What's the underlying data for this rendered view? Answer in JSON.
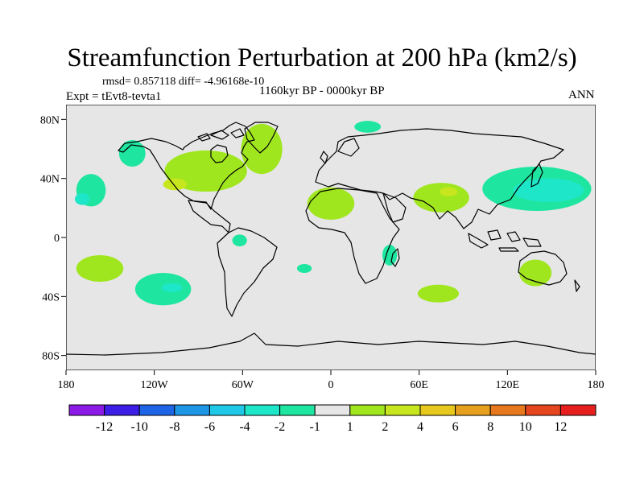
{
  "title": "Streamfunction Perturbation at 200 hPa (km2/s)",
  "stats_line": "rmsd= 0.857118 diff= -4.96168e-10",
  "experiment": "Expt = tEvt8-tevta1",
  "period": "1160kyr BP - 0000kyr BP",
  "season": "ANN",
  "map": {
    "projection": "cylindrical-equidistant",
    "lon_range": [
      -180,
      180
    ],
    "lat_range": [
      -90,
      90
    ],
    "background_color": "#e6e6e6",
    "coastline_color": "#000000",
    "y_ticks": [
      {
        "lat": 80,
        "label": "80N"
      },
      {
        "lat": 40,
        "label": "40N"
      },
      {
        "lat": 0,
        "label": "0"
      },
      {
        "lat": -40,
        "label": "40S"
      },
      {
        "lat": -80,
        "label": "80S"
      }
    ],
    "x_ticks": [
      {
        "lon": -180,
        "label": "180"
      },
      {
        "lon": -120,
        "label": "120W"
      },
      {
        "lon": -60,
        "label": "60W"
      },
      {
        "lon": 0,
        "label": "0"
      },
      {
        "lon": 60,
        "label": "60E"
      },
      {
        "lon": 120,
        "label": "120E"
      },
      {
        "lon": 180,
        "label": "180"
      }
    ]
  },
  "colorbar": {
    "colors": [
      "#8c1ae6",
      "#3c1ee6",
      "#1e64e6",
      "#1e96e6",
      "#1ec8e6",
      "#1ee6c8",
      "#1ee6a0",
      "#e6e6e6",
      "#a0e61e",
      "#c8e61e",
      "#e6c81e",
      "#e6a01e",
      "#e6781e",
      "#e6461e",
      "#e61e1e"
    ],
    "labels": [
      "-12",
      "-10",
      "-8",
      "-6",
      "-4",
      "-2",
      "-1",
      "1",
      "2",
      "4",
      "6",
      "8",
      "10",
      "12"
    ]
  },
  "chart_data": {
    "type": "heatmap",
    "title": "Streamfunction Perturbation at 200 hPa (km2/s)",
    "units": "km2/s",
    "levels": [
      -12,
      -10,
      -8,
      -6,
      -4,
      -2,
      -1,
      1,
      2,
      4,
      6,
      8,
      10,
      12
    ],
    "anomalies": [
      {
        "name": "north-pacific-positive",
        "lon": -163,
        "lat": 32,
        "lon_half_width": 10,
        "lat_half_height": 11,
        "value": -2
      },
      {
        "name": "north-pacific-core",
        "lon": -169,
        "lat": 26,
        "lon_half_width": 5,
        "lat_half_height": 4,
        "value": -4
      },
      {
        "name": "aleutian-blob",
        "lon": -135,
        "lat": 57,
        "lon_half_width": 9,
        "lat_half_height": 9,
        "value": -2
      },
      {
        "name": "north-america-ridge",
        "lon": -85,
        "lat": 45,
        "lon_half_width": 28,
        "lat_half_height": 14,
        "value": 2
      },
      {
        "name": "north-america-core",
        "lon": -106,
        "lat": 36,
        "lon_half_width": 8,
        "lat_half_height": 4,
        "value": 4
      },
      {
        "name": "north-atlantic-branch",
        "lon": -47,
        "lat": 60,
        "lon_half_width": 14,
        "lat_half_height": 17,
        "value": 2
      },
      {
        "name": "arctic-europe",
        "lon": 25,
        "lat": 75,
        "lon_half_width": 9,
        "lat_half_height": 4,
        "value": -2
      },
      {
        "name": "north-africa",
        "lon": 0,
        "lat": 23,
        "lon_half_width": 16,
        "lat_half_height": 11,
        "value": 2
      },
      {
        "name": "south-asia-high",
        "lon": 75,
        "lat": 27,
        "lon_half_width": 19,
        "lat_half_height": 10,
        "value": 2
      },
      {
        "name": "south-asia-core",
        "lon": 80,
        "lat": 31,
        "lon_half_width": 6,
        "lat_half_height": 3,
        "value": 4
      },
      {
        "name": "east-asia-pacific",
        "lon": 140,
        "lat": 33,
        "lon_half_width": 37,
        "lat_half_height": 15,
        "value": -2
      },
      {
        "name": "east-asia-core",
        "lon": 148,
        "lat": 32,
        "lon_half_width": 24,
        "lat_half_height": 8,
        "value": -4
      },
      {
        "name": "equatorial-south-america",
        "lon": -62,
        "lat": -2,
        "lon_half_width": 5,
        "lat_half_height": 4,
        "value": -2
      },
      {
        "name": "south-atlantic-east",
        "lon": -18,
        "lat": -21,
        "lon_half_width": 5,
        "lat_half_height": 3,
        "value": -2
      },
      {
        "name": "east-africa",
        "lon": 40,
        "lat": -12,
        "lon_half_width": 5,
        "lat_half_height": 7,
        "value": -2
      },
      {
        "name": "south-indian",
        "lon": 73,
        "lat": -38,
        "lon_half_width": 14,
        "lat_half_height": 6,
        "value": 2
      },
      {
        "name": "australia",
        "lon": 139,
        "lat": -24,
        "lon_half_width": 11,
        "lat_half_height": 9,
        "value": 2
      },
      {
        "name": "southwest-pacific",
        "lon": -157,
        "lat": -21,
        "lon_half_width": 16,
        "lat_half_height": 9,
        "value": 2
      },
      {
        "name": "southeast-pacific",
        "lon": -114,
        "lat": -35,
        "lon_half_width": 19,
        "lat_half_height": 11,
        "value": -2
      },
      {
        "name": "southeast-pacific-core",
        "lon": -108,
        "lat": -34,
        "lon_half_width": 7,
        "lat_half_height": 3,
        "value": -4
      }
    ]
  }
}
